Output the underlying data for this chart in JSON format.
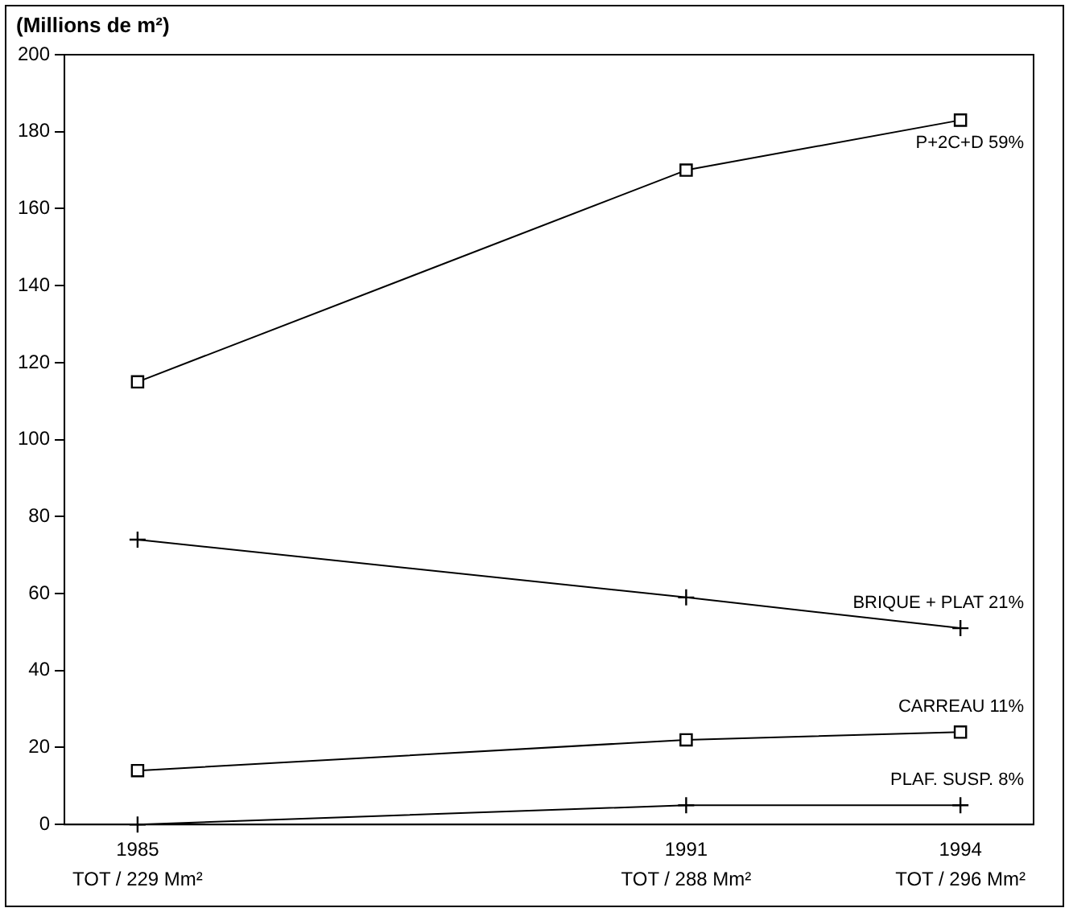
{
  "chart_data": {
    "type": "line",
    "ylabel": "(Millions de m²)",
    "x": [
      1985,
      1991,
      1994
    ],
    "xlim": [
      1984.2,
      1994.8
    ],
    "xticks": [
      1985,
      1991,
      1994
    ],
    "annotations": [
      "TOT / 229 Mm²",
      "TOT / 288 Mm²",
      "TOT / 296 Mm²"
    ],
    "ylim": [
      0,
      200
    ],
    "yticks": [
      0,
      20,
      40,
      60,
      80,
      100,
      120,
      140,
      160,
      180,
      200
    ],
    "grid": false,
    "legend": false,
    "series": [
      {
        "name": "P+2C+D 59%",
        "color": "#000000",
        "marker": "square",
        "values": [
          115,
          170,
          183
        ]
      },
      {
        "name": "BRIQUE + PLAT 21%",
        "color": "#000000",
        "marker": "cross",
        "values": [
          74,
          59,
          51
        ]
      },
      {
        "name": "CARREAU 11%",
        "color": "#000000",
        "marker": "square",
        "values": [
          14,
          22,
          24
        ]
      },
      {
        "name": "PLAF. SUSP. 8%",
        "color": "#000000",
        "marker": "cross",
        "values": [
          0,
          5,
          5
        ]
      }
    ]
  }
}
